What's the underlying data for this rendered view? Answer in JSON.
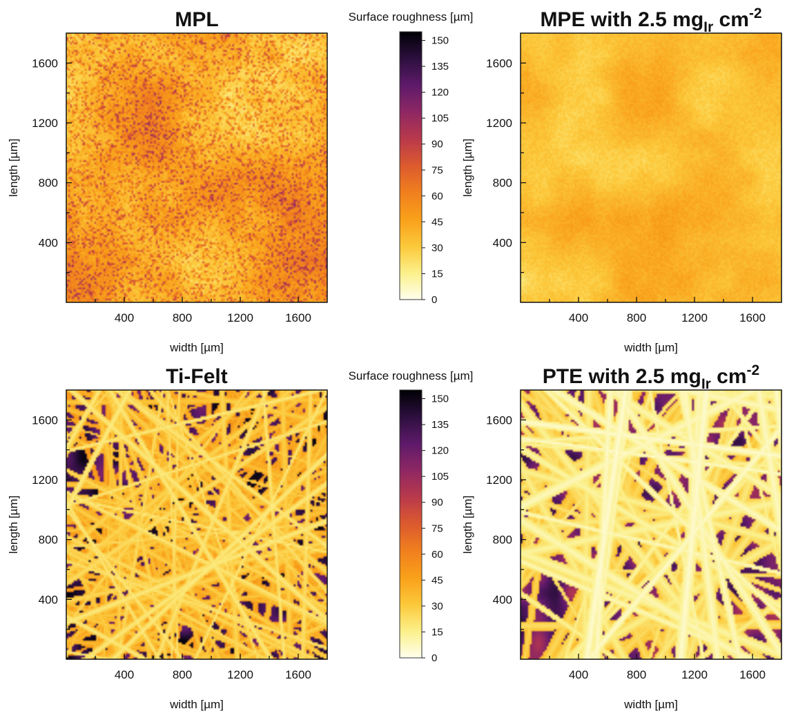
{
  "chart_data": [
    {
      "type": "heatmap",
      "title": "MPL",
      "title_sub": "",
      "title_sup": "",
      "xlabel": "width [µm]",
      "ylabel": "length [µm]",
      "xlim": [
        0,
        1800
      ],
      "ylim": [
        0,
        1800
      ],
      "xticks": [
        400,
        800,
        1200,
        1600
      ],
      "yticks": [
        400,
        800,
        1200,
        1600
      ],
      "texture": "fine-porous",
      "seed": 11
    },
    {
      "type": "heatmap",
      "title": "MPE with 2.5 mg",
      "title_sub": "Ir",
      "title_sup": " cm-2",
      "xlabel": "width [µm]",
      "ylabel": "length [µm]",
      "xlim": [
        0,
        1800
      ],
      "ylim": [
        0,
        1800
      ],
      "xticks": [
        400,
        800,
        1200,
        1600
      ],
      "yticks": [
        400,
        800,
        1200,
        1600
      ],
      "texture": "smooth-coated",
      "seed": 23
    },
    {
      "type": "heatmap",
      "title": "Ti-Felt",
      "title_sub": "",
      "title_sup": "",
      "xlabel": "width [µm]",
      "ylabel": "length [µm]",
      "xlim": [
        0,
        1800
      ],
      "ylim": [
        0,
        1800
      ],
      "xticks": [
        400,
        800,
        1200,
        1600
      ],
      "yticks": [
        400,
        800,
        1200,
        1600
      ],
      "texture": "fibers-thin",
      "seed": 37
    },
    {
      "type": "heatmap",
      "title": "PTE with 2.5 mg",
      "title_sub": "Ir",
      "title_sup": " cm-2",
      "xlabel": "width [µm]",
      "ylabel": "length [µm]",
      "xlim": [
        0,
        1800
      ],
      "ylim": [
        0,
        1800
      ],
      "xticks": [
        400,
        800,
        1200,
        1600
      ],
      "yticks": [
        400,
        800,
        1200,
        1600
      ],
      "texture": "fibers-thick",
      "seed": 53
    }
  ],
  "colorbars": [
    {
      "label": "Surface roughness [µm]",
      "ticks": [
        0,
        15,
        30,
        45,
        60,
        75,
        90,
        105,
        120,
        135,
        150
      ],
      "range": [
        0,
        155
      ],
      "colormap": "inferno-reversed"
    },
    {
      "label": "Surface roughness [µm]",
      "ticks": [
        0,
        15,
        30,
        45,
        60,
        75,
        90,
        105,
        120,
        135,
        150
      ],
      "range": [
        0,
        155
      ],
      "colormap": "inferno-reversed"
    }
  ],
  "colors": {
    "cmap_stops": [
      "#ffffee",
      "#fbf08a",
      "#fcc83a",
      "#f9a01a",
      "#f07f1e",
      "#dc5a2e",
      "#b9394b",
      "#8e2763",
      "#5e1a6a",
      "#2c0f3e",
      "#000004"
    ]
  }
}
